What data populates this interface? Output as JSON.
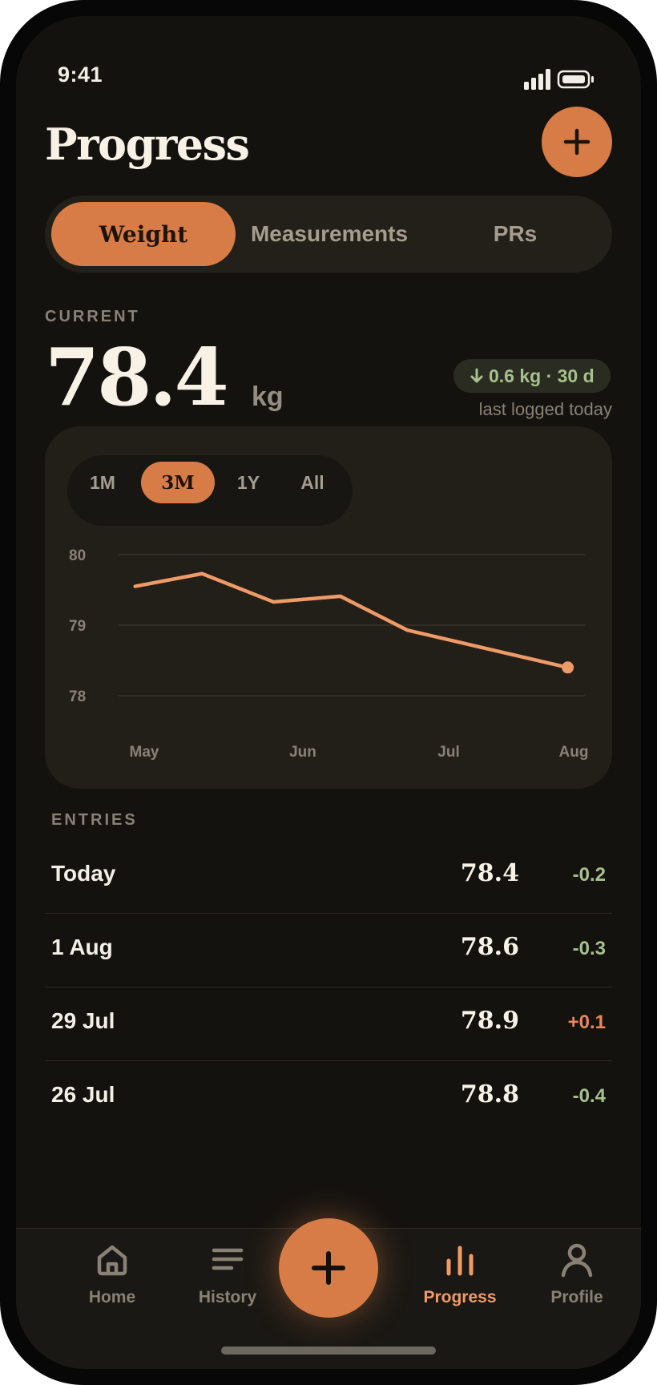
{
  "status_bar": {
    "time": "9:41"
  },
  "header": {
    "title": "Progress",
    "add_icon": "plus-icon"
  },
  "segments": {
    "weight": "Weight",
    "measurements": "Measurements",
    "prs": "PRs",
    "selected": "Weight"
  },
  "current": {
    "label": "CURRENT",
    "value": "78.4",
    "unit": "kg",
    "delta_badge": "0.6 kg · 30 d",
    "delta_icon": "arrow-down-icon",
    "last_logged": "last logged today"
  },
  "ranges": {
    "m1": "1M",
    "m3": "3M",
    "y1": "1Y",
    "all": "All",
    "selected": "3M"
  },
  "chart_data": {
    "type": "line",
    "y_ticks": [
      "80",
      "79",
      "78"
    ],
    "x_ticks": [
      "May",
      "Jun",
      "Jul",
      "Aug"
    ],
    "ylim": [
      78,
      80
    ],
    "grid": true,
    "series": [
      {
        "values": [
          {
            "x": "2024-05-01",
            "y": 79.55
          },
          {
            "x": "2024-05-16",
            "y": 79.73
          },
          {
            "x": "2024-06-01",
            "y": 79.33
          },
          {
            "x": "2024-06-16",
            "y": 79.41
          },
          {
            "x": "2024-07-01",
            "y": 78.93
          },
          {
            "x": "2024-08-06",
            "y": 78.4
          }
        ]
      }
    ],
    "color": "#ef9b67"
  },
  "entries": {
    "label": "ENTRIES",
    "rows": [
      {
        "date": "Today",
        "value": "78.4",
        "delta": "-0.2"
      },
      {
        "date": "1 Aug",
        "value": "78.6",
        "delta": "-0.3"
      },
      {
        "date": "29 Jul",
        "value": "78.9",
        "delta": "+0.1"
      },
      {
        "date": "26 Jul",
        "value": "78.8",
        "delta": "-0.4"
      }
    ]
  },
  "tabbar": {
    "home": "Home",
    "history": "History",
    "progress": "Progress",
    "profile": "Profile",
    "active": "Progress",
    "fab_icon": "plus-icon"
  },
  "colors": {
    "accent": "#d87c47",
    "accent_light": "#ef9b67",
    "down": "#a8c08e",
    "background": "#14120f"
  }
}
